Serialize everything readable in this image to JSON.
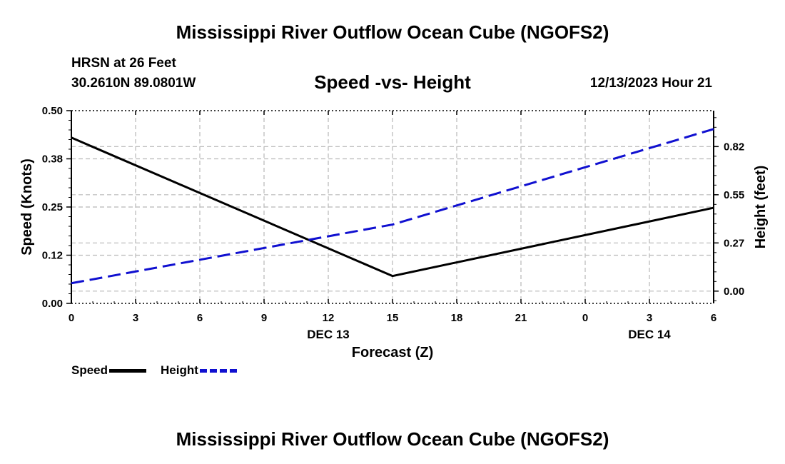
{
  "header": {
    "title": "Mississippi River Outflow Ocean Cube (NGOFS2)",
    "station": "HRSN at 26 Feet",
    "coords": "30.2610N  89.0801W",
    "subtitle": "Speed -vs- Height",
    "datetime": "12/13/2023 Hour 21"
  },
  "footer": {
    "title": "Mississippi River Outflow Ocean Cube (NGOFS2)"
  },
  "legend": {
    "speed_label": "Speed",
    "height_label": "Height"
  },
  "colors": {
    "speed": "#000000",
    "height": "#1010d0",
    "grid": "#b8b8b8"
  },
  "chart_data": {
    "type": "line",
    "title": "Speed -vs- Height",
    "xlabel": "Forecast (Z)",
    "ylabel": "Speed (Knots)",
    "y2label": "Height (feet)",
    "x": [
      0,
      3,
      6,
      9,
      12,
      15,
      18,
      21,
      24,
      27,
      30
    ],
    "xlim": [
      0,
      30
    ],
    "x_tick_labels": [
      "0",
      "3",
      "6",
      "9",
      "12",
      "15",
      "18",
      "21",
      "0",
      "3",
      "6"
    ],
    "date_labels": [
      {
        "x": 12,
        "label": "DEC 13"
      },
      {
        "x": 27,
        "label": "DEC 14"
      }
    ],
    "ylim": [
      0,
      0.5
    ],
    "y_ticks": [
      0.0,
      0.125,
      0.25,
      0.375,
      0.5
    ],
    "y_tick_labels": [
      "0.00",
      "0.12",
      "0.25",
      "0.38",
      "0.50"
    ],
    "y2lim": [
      -0.07,
      1.03
    ],
    "y2_ticks": [
      0.0,
      0.275,
      0.55,
      0.825
    ],
    "y2_tick_labels": [
      "0.00",
      "0.27",
      "0.55",
      "0.82"
    ],
    "grid": true,
    "series": [
      {
        "name": "Speed",
        "axis": "left",
        "style": "solid",
        "points": [
          [
            0,
            0.43
          ],
          [
            15,
            0.071
          ],
          [
            30,
            0.248
          ]
        ]
      },
      {
        "name": "Height",
        "axis": "right",
        "style": "dashed",
        "points": [
          [
            0,
            0.045
          ],
          [
            15,
            0.38
          ],
          [
            30,
            0.925
          ]
        ]
      }
    ]
  }
}
